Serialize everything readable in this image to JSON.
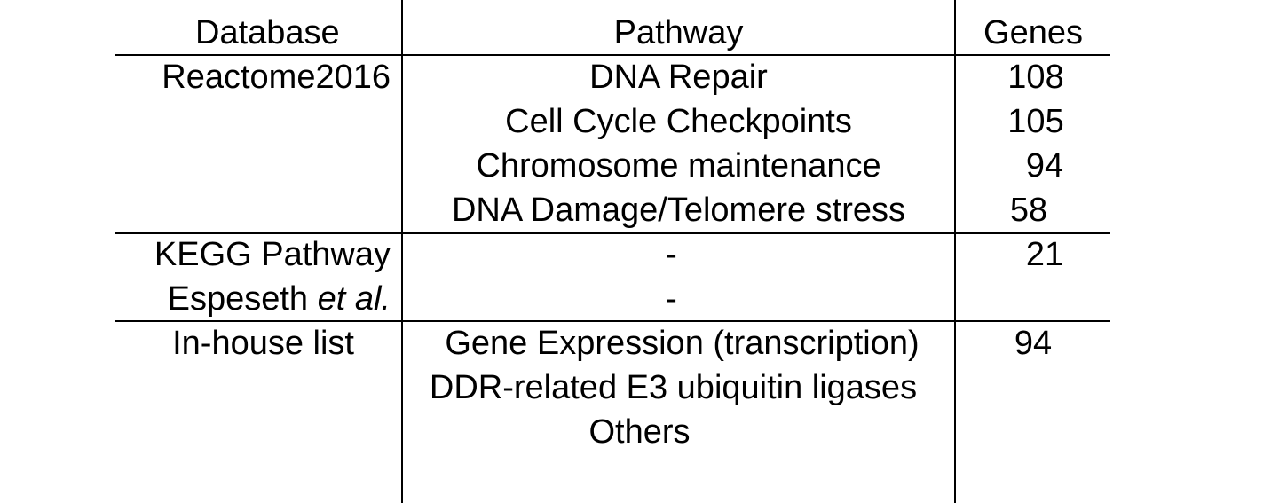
{
  "table": {
    "headers": {
      "database": "Database",
      "pathway": "Pathway",
      "genes": "Genes"
    },
    "groups": [
      {
        "database": "Reactome2016",
        "pathways": [
          {
            "name": "DNA Repair",
            "genes": "108"
          },
          {
            "name": "Cell Cycle Checkpoints",
            "genes": "105"
          },
          {
            "name": "Chromosome maintenance",
            "genes": "94"
          },
          {
            "name": "DNA Damage/Telomere stress",
            "genes": "58"
          }
        ]
      },
      {
        "database": "KEGG Pathway",
        "pathways": [
          {
            "name": "-",
            "genes": "21"
          }
        ]
      },
      {
        "database_prefix": "Espeseth ",
        "database_italic": "et al.",
        "pathways": [
          {
            "name": "-",
            "genes": ""
          }
        ]
      },
      {
        "database": "In-house list",
        "pathways": [
          {
            "name": "Gene Expression (transcription)",
            "genes": "94"
          },
          {
            "name": "DDR-related E3 ubiquitin ligases",
            "genes": ""
          },
          {
            "name": "Others",
            "genes": ""
          }
        ]
      }
    ]
  }
}
